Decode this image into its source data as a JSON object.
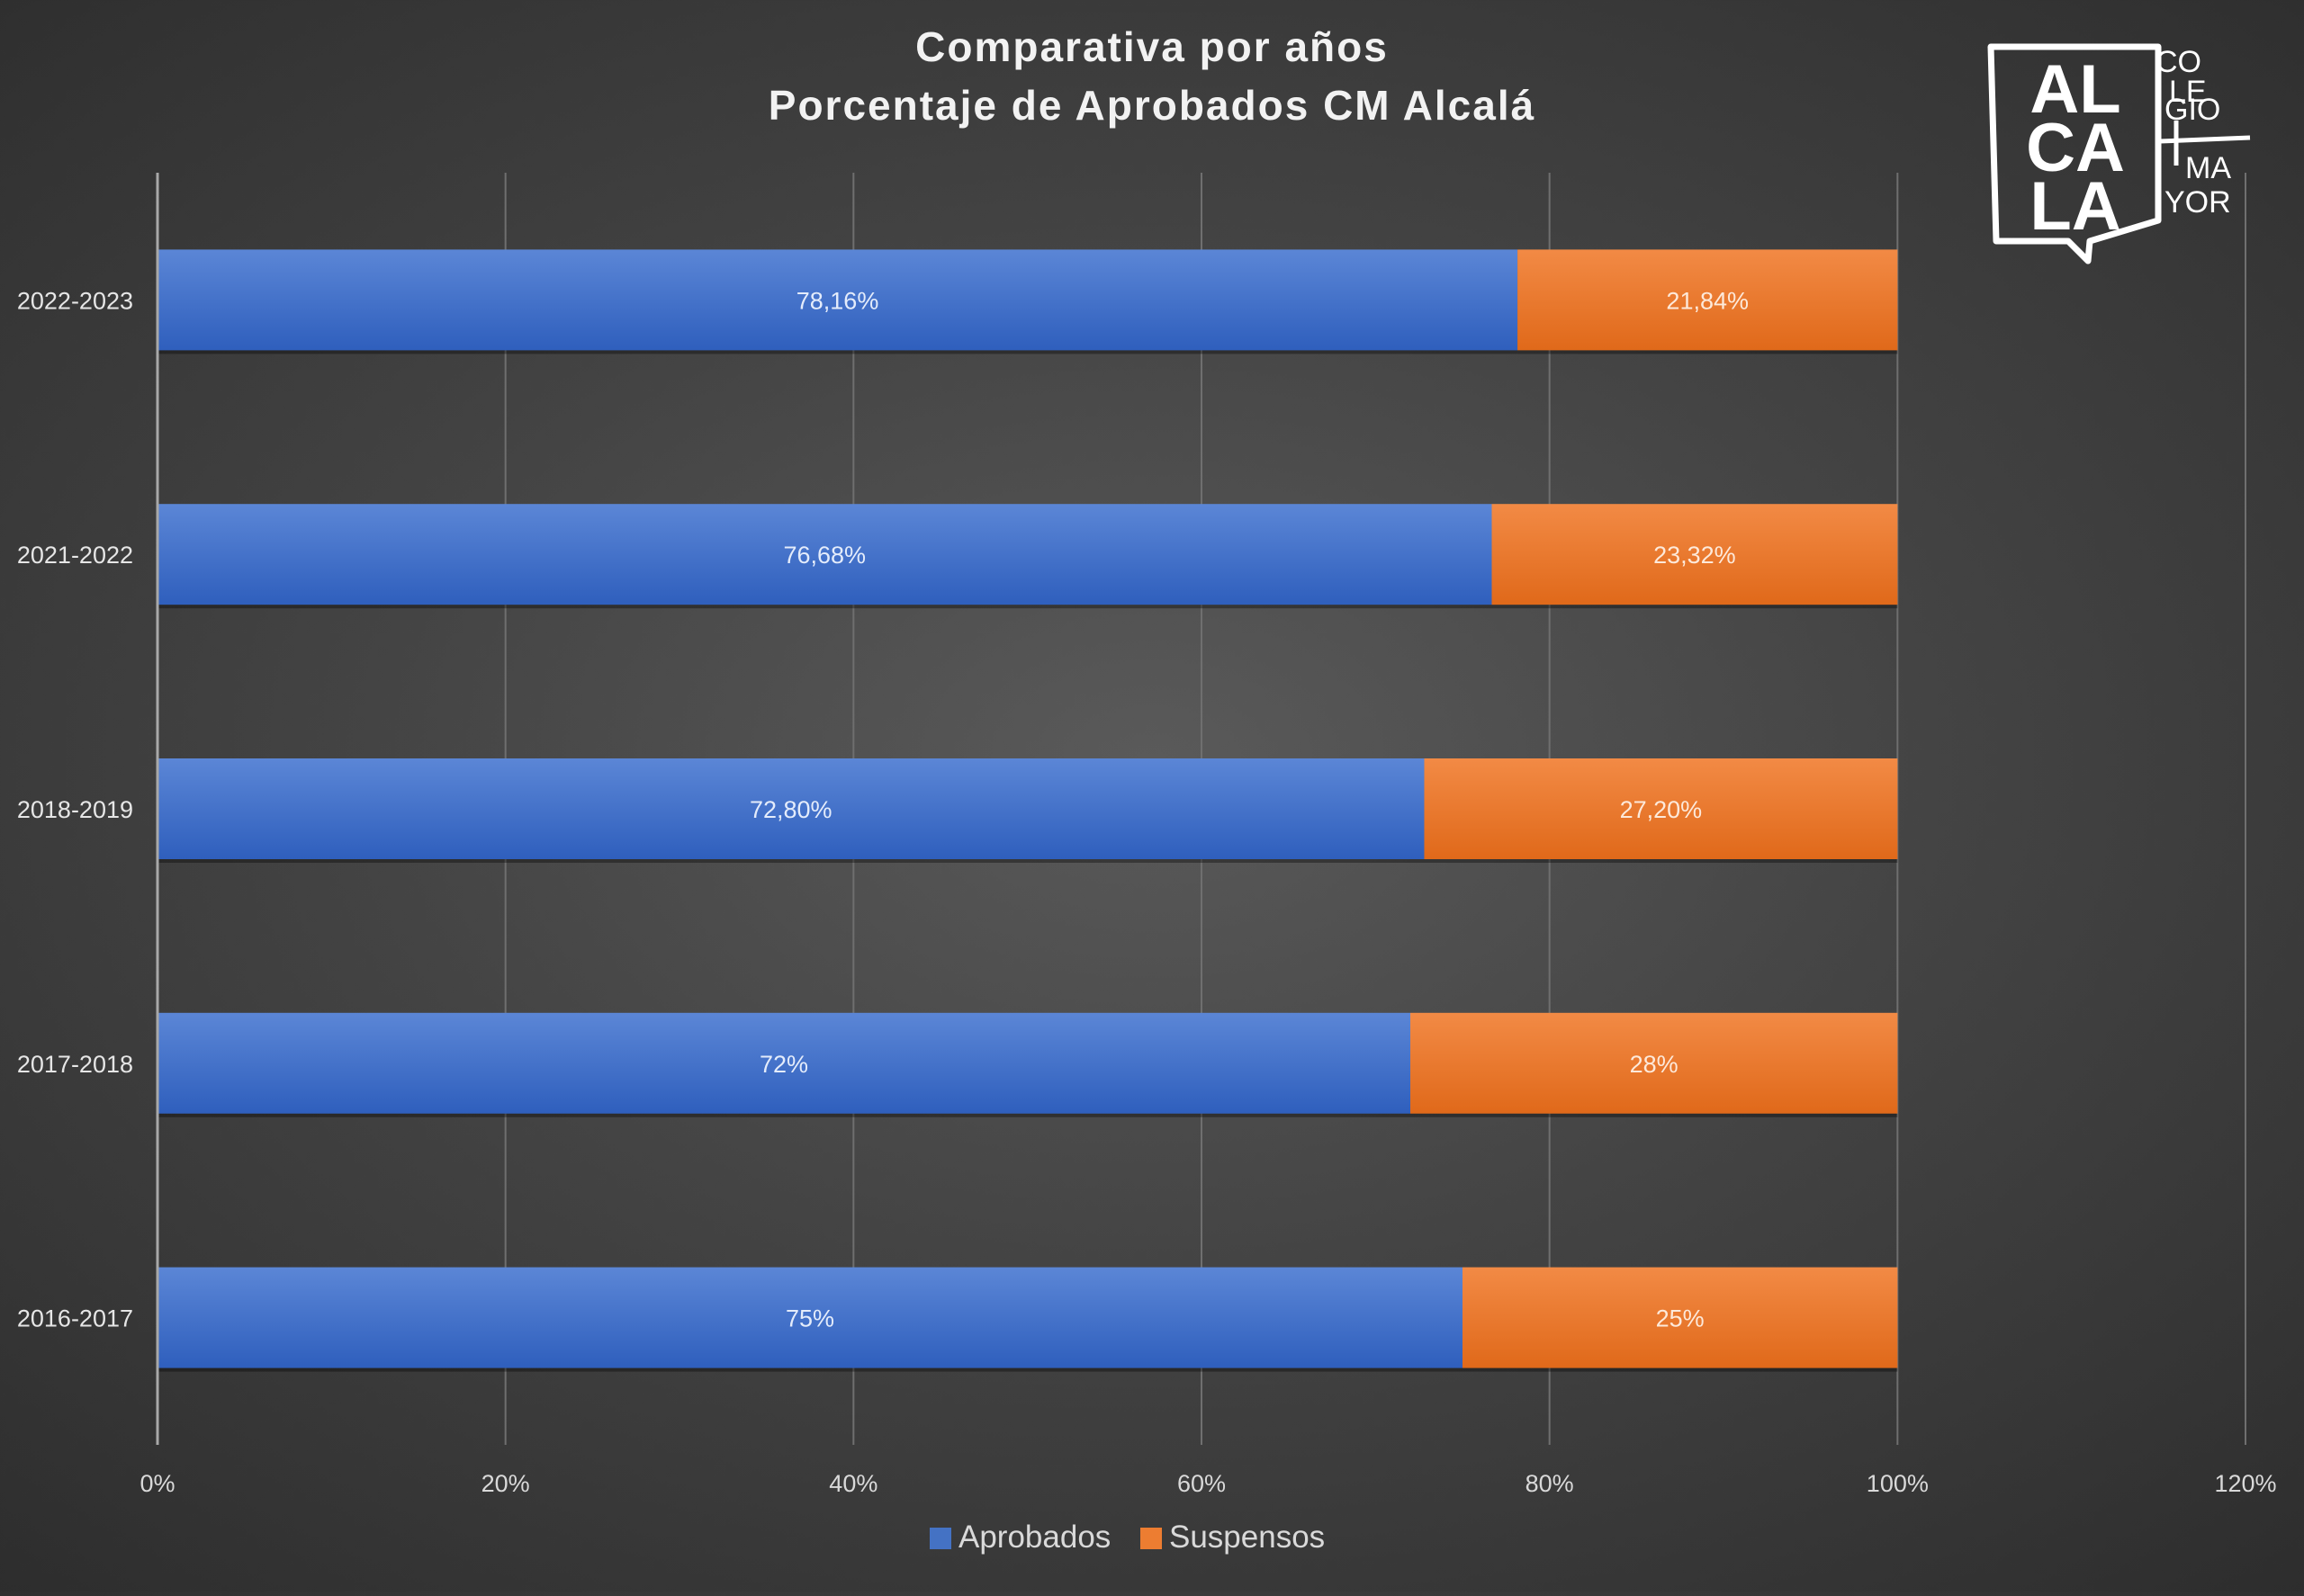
{
  "chart_data": {
    "type": "bar",
    "orientation": "horizontal",
    "stacked": true,
    "title": "Comparativa por años",
    "subtitle": "Porcentaje de Aprobados CM Alcalá",
    "categories": [
      "2022-2023",
      "2021-2022",
      "2018-2019",
      "2017-2018",
      "2016-2017"
    ],
    "series": [
      {
        "name": "Aprobados",
        "color": "#4472c4",
        "values": [
          78.16,
          76.68,
          72.8,
          72,
          75
        ],
        "labels": [
          "78,16%",
          "76,68%",
          "72,80%",
          "72%",
          "75%"
        ]
      },
      {
        "name": "Suspensos",
        "color": "#ed7d31",
        "values": [
          21.84,
          23.32,
          27.2,
          28,
          25
        ],
        "labels": [
          "21,84%",
          "23,32%",
          "27,20%",
          "28%",
          "25%"
        ]
      }
    ],
    "xlim": [
      0,
      120
    ],
    "xticks": [
      "0%",
      "20%",
      "40%",
      "60%",
      "80%",
      "100%",
      "120%"
    ],
    "grid": true,
    "legend_position": "bottom"
  },
  "logo": {
    "letters": [
      "AL",
      "CA",
      "LA"
    ],
    "text": [
      "CO",
      "LE",
      "GIO",
      "MA",
      "YOR"
    ]
  }
}
